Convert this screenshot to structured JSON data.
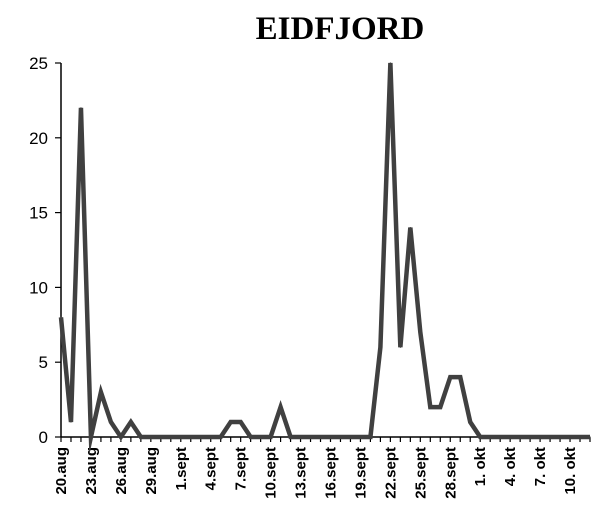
{
  "chart_data": {
    "type": "line",
    "title": "EIDFJORD",
    "xlabel": "",
    "ylabel": "",
    "ylim": [
      0,
      25
    ],
    "yticks": [
      0,
      5,
      10,
      15,
      20,
      25
    ],
    "grid": false,
    "legend": "none",
    "line_color": "#404040",
    "tick_labels": [
      "20.aug",
      "23.aug",
      "26.aug",
      "29.aug",
      "1.sept",
      "4.sept",
      "7.sept",
      "10.sept",
      "13.sept",
      "16.sept",
      "19.sept",
      "22.sept",
      "25.sept",
      "28.sept",
      "1. okt",
      "4. okt",
      "7. okt",
      "10. okt"
    ],
    "x": [
      "20.aug",
      "21.aug",
      "22.aug",
      "23.aug",
      "24.aug",
      "25.aug",
      "26.aug",
      "27.aug",
      "28.aug",
      "29.aug",
      "30.aug",
      "31.aug",
      "1.sept",
      "2.sept",
      "3.sept",
      "4.sept",
      "5.sept",
      "6.sept",
      "7.sept",
      "8.sept",
      "9.sept",
      "10.sept",
      "11.sept",
      "12.sept",
      "13.sept",
      "14.sept",
      "15.sept",
      "16.sept",
      "17.sept",
      "18.sept",
      "19.sept",
      "20.sept",
      "21.sept",
      "22.sept",
      "23.sept",
      "24.sept",
      "25.sept",
      "26.sept",
      "27.sept",
      "28.sept",
      "29.sept",
      "30.sept",
      "1. okt",
      "2. okt",
      "3. okt",
      "4. okt",
      "5. okt",
      "6. okt",
      "7. okt",
      "8. okt",
      "9. okt",
      "10. okt",
      "11. okt",
      "12. okt"
    ],
    "values": [
      8,
      1,
      22,
      0,
      3,
      1,
      0,
      1,
      0,
      0,
      0,
      0,
      0,
      0,
      0,
      0,
      0,
      1,
      1,
      0,
      0,
      0,
      2,
      0,
      0,
      0,
      0,
      0,
      0,
      0,
      0,
      0,
      6,
      25,
      6,
      14,
      7,
      2,
      2,
      4,
      4,
      1,
      0,
      0,
      0,
      0,
      0,
      0,
      0,
      0,
      0,
      0,
      0,
      0
    ]
  }
}
